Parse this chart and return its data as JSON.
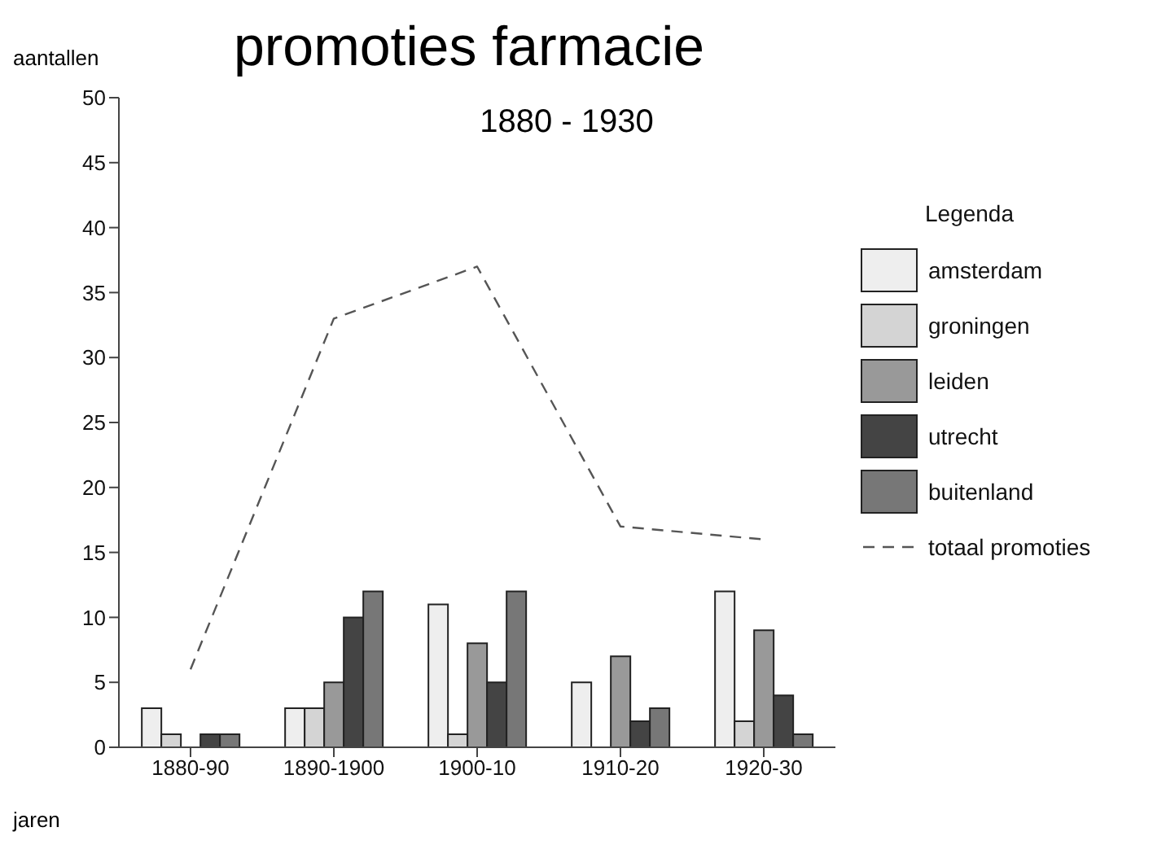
{
  "chart_data": {
    "type": "bar",
    "title": "promoties farmacie",
    "subtitle": "1880 - 1930",
    "xlabel": "jaren",
    "ylabel": "aantallen",
    "legend_title": "Legenda",
    "categories": [
      "1880-90",
      "1890-1900",
      "1900-10",
      "1910-20",
      "1920-30"
    ],
    "series": [
      {
        "name": "amsterdam",
        "color": "#eeeeee",
        "values": [
          3,
          3,
          11,
          5,
          12
        ]
      },
      {
        "name": "groningen",
        "color": "#d4d4d4",
        "values": [
          1,
          3,
          1,
          0,
          2
        ]
      },
      {
        "name": "leiden",
        "color": "#999999",
        "values": [
          0,
          5,
          8,
          7,
          9
        ]
      },
      {
        "name": "utrecht",
        "color": "#444444",
        "values": [
          1,
          10,
          5,
          2,
          4
        ]
      },
      {
        "name": "buitenland",
        "color": "#777777",
        "values": [
          1,
          12,
          12,
          3,
          1
        ]
      },
      {
        "name": "totaal promoties",
        "type": "line",
        "color": "#555555",
        "line_style": "dashed",
        "marker": "none",
        "values": [
          6,
          33,
          37,
          17,
          16
        ]
      }
    ],
    "ylim": [
      0,
      50
    ],
    "yticks": [
      0,
      5,
      10,
      15,
      20,
      25,
      30,
      35,
      40,
      45,
      50
    ],
    "grid": false,
    "legend": "right"
  }
}
